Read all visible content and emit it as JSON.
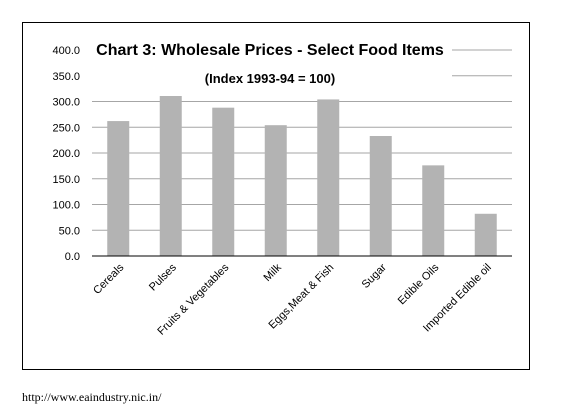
{
  "chart_data": {
    "type": "bar",
    "title": "Chart 3: Wholesale Prices - Select Food Items",
    "subtitle": "(Index 1993-94 = 100)",
    "categories": [
      "Cereals",
      "Pulses",
      "Fruits & Vegetables",
      "Milk",
      "Eggs,Meat & Fish",
      "Sugar",
      "Edible Oils",
      "Imported Edible oil"
    ],
    "values": [
      262,
      320,
      288,
      254,
      304,
      233,
      176,
      82
    ],
    "ylim": [
      0,
      400
    ],
    "yticks": [
      "0.0",
      "50.0",
      "100.0",
      "150.0",
      "200.0",
      "250.0",
      "300.0",
      "350.0",
      "400.0"
    ],
    "grid": true,
    "bar_color": "#b3b3b3",
    "grid_color": "#a6a6a6"
  },
  "source_note": "http://www.eaindustry.nic.in/"
}
